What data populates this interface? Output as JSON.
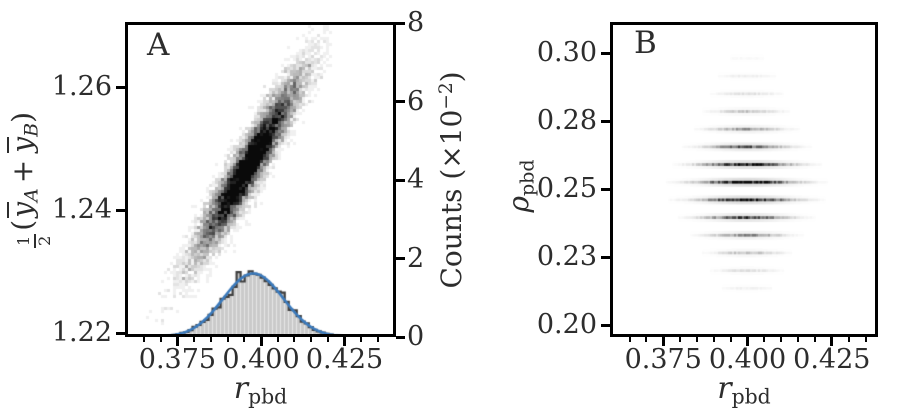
{
  "figure": {
    "background": "#ffffff",
    "text_color": "#2d2d2d",
    "spine_color": "#000000",
    "accent_blue": "#3b7abc",
    "hist_fill": "#cacaca",
    "hist_edge": "#3e3e3e"
  },
  "panel_a": {
    "letter": "A",
    "xlabel": {
      "base": "r",
      "sub": "pbd"
    },
    "ylabel_left": {
      "frac_num": "1",
      "frac_den": "2",
      "open": "(",
      "var1": "y",
      "sub1": "A",
      "op": "+",
      "var2": "y",
      "sub2": "B",
      "close": ")"
    },
    "ylabel_right": {
      "base": "Counts",
      "open": "(×10",
      "sup": "−2",
      "close": ")"
    },
    "x_axis": {
      "min": 0.3593,
      "max": 0.4404,
      "major_ticks": [
        0.375,
        0.4,
        0.425
      ],
      "major_labels": [
        "0.375",
        "0.400",
        "0.425"
      ],
      "minor_step": 0.005
    },
    "y_axis_left": {
      "min": 1.2194,
      "max": 1.2706,
      "major_ticks": [
        1.22,
        1.24,
        1.26
      ],
      "major_labels": [
        "1.22",
        "1.24",
        "1.26"
      ]
    },
    "y_axis_right": {
      "min": 0,
      "max": 8.03,
      "major_ticks": [
        0,
        2,
        4,
        6,
        8
      ],
      "major_labels": [
        "0",
        "2",
        "4",
        "6",
        "8"
      ]
    }
  },
  "panel_b": {
    "letter": "B",
    "xlabel": {
      "base": "r",
      "sub": "pbd"
    },
    "ylabel": {
      "base": "ρ",
      "sub": "pbd"
    },
    "x_axis": {
      "min": 0.3592,
      "max": 0.4387,
      "major_ticks": [
        0.375,
        0.4,
        0.425
      ],
      "major_labels": [
        "0.375",
        "0.400",
        "0.425"
      ],
      "minor_step": 0.005
    },
    "y_axis": {
      "min": 0.1956,
      "max": 0.3114,
      "major_ticks": [
        0.2,
        0.225,
        0.25,
        0.275,
        0.3
      ],
      "major_labels": [
        "0.20",
        "0.23",
        "0.25",
        "0.28",
        "0.30"
      ]
    }
  },
  "chart_data": [
    {
      "panel": "A",
      "type": "heatmap",
      "description": "2D greyscale density of r_pbd vs (1/2)(ybar_A+ybar_B), diagonally elongated Gaussian cloud, with x-marginal histogram and smooth Gaussian fit curve along the bottom",
      "xlabel": "r_pbd",
      "ylabel": "(1/2)(ybar_A + ybar_B)",
      "ylabel_right": "Counts (×10^-2)",
      "xlim": [
        0.3593,
        0.4404
      ],
      "ylim_left": [
        1.2194,
        1.2706
      ],
      "ylim_right": [
        0,
        8.03
      ],
      "density": {
        "center_x": 0.3963,
        "center_y": 1.2472,
        "sigma_x": 0.0082,
        "sigma_y": 0.0075,
        "correlation": 0.94,
        "colormap": "white-to-black"
      },
      "histogram": {
        "center": 0.3977,
        "sigma": 0.009,
        "peak_counts": 1.62,
        "bin_width": 0.0012,
        "x_start": 0.3735,
        "x_end": 0.4235
      }
    },
    {
      "panel": "B",
      "type": "heatmap",
      "description": "2D greyscale density of r_pbd vs rho_pbd: discrete horizontal bands centred on r_pbd ≈ 0.40, darkest near rho ≈ 0.25",
      "xlabel": "r_pbd",
      "ylabel": "rho_pbd",
      "xlim": [
        0.3592,
        0.4387
      ],
      "ylim": [
        0.1956,
        0.3114
      ],
      "band_center_x": 0.3995,
      "bands": [
        {
          "rho": 0.298,
          "intensity": 0.03
        },
        {
          "rho": 0.2915,
          "intensity": 0.06
        },
        {
          "rho": 0.285,
          "intensity": 0.11
        },
        {
          "rho": 0.2785,
          "intensity": 0.2
        },
        {
          "rho": 0.272,
          "intensity": 0.35
        },
        {
          "rho": 0.2655,
          "intensity": 0.6
        },
        {
          "rho": 0.259,
          "intensity": 0.88
        },
        {
          "rho": 0.2525,
          "intensity": 1.0
        },
        {
          "rho": 0.246,
          "intensity": 0.95
        },
        {
          "rho": 0.2395,
          "intensity": 0.7
        },
        {
          "rho": 0.233,
          "intensity": 0.42
        },
        {
          "rho": 0.2265,
          "intensity": 0.22
        },
        {
          "rho": 0.22,
          "intensity": 0.11
        },
        {
          "rho": 0.2135,
          "intensity": 0.05
        },
        {
          "rho": 0.207,
          "intensity": 0.02
        }
      ]
    }
  ]
}
